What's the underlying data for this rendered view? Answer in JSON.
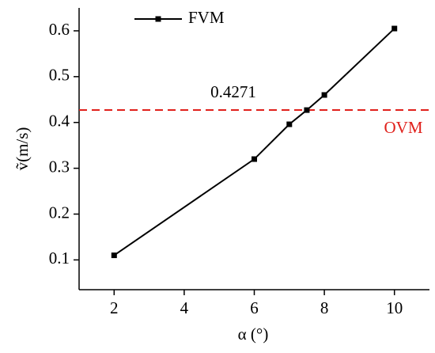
{
  "chart_data": {
    "type": "line",
    "x_label": "α (°)",
    "y_label": "ṽ(m/s)",
    "x": [
      2,
      6,
      7,
      7.5,
      8,
      10
    ],
    "series": [
      {
        "name": "FVM",
        "color": "#000000",
        "values": [
          0.11,
          0.32,
          0.396,
          0.427,
          0.46,
          0.605
        ]
      }
    ],
    "xlim": [
      1,
      11
    ],
    "xticks": [
      2,
      4,
      6,
      8,
      10
    ],
    "ylim": [
      0.035,
      0.65
    ],
    "yticks": [
      0.1,
      0.2,
      0.3,
      0.4,
      0.5,
      0.6
    ],
    "reference_line": {
      "name": "OVM",
      "value": 0.4271,
      "color": "#e0201b"
    },
    "legend": "upper left"
  }
}
